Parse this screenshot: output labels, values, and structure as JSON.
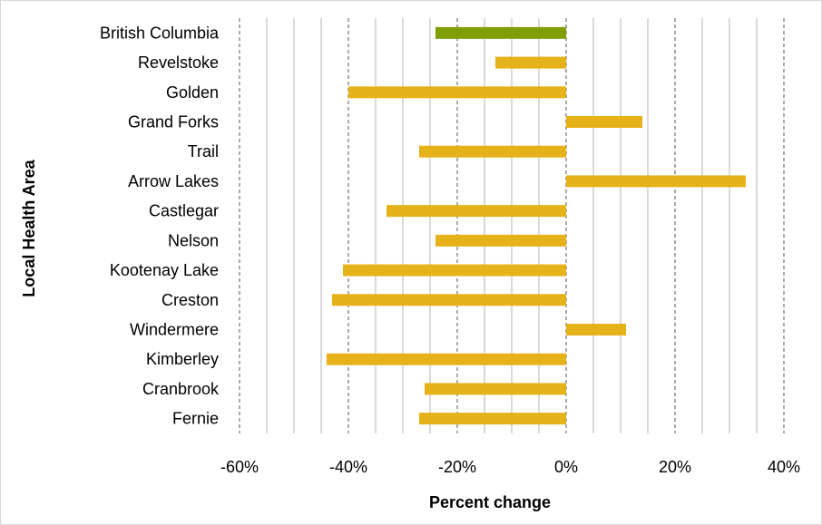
{
  "chart_data": {
    "type": "bar",
    "orientation": "horizontal",
    "categories": [
      "British Columbia",
      "Revelstoke",
      "Golden",
      "Grand Forks",
      "Trail",
      "Arrow Lakes",
      "Castlegar",
      "Nelson",
      "Kootenay Lake",
      "Creston",
      "Windermere",
      "Kimberley",
      "Cranbrook",
      "Fernie"
    ],
    "values": [
      -0.24,
      -0.13,
      -0.4,
      0.14,
      -0.27,
      0.33,
      -0.33,
      -0.24,
      -0.41,
      -0.43,
      0.11,
      -0.44,
      -0.26,
      -0.27
    ],
    "bar_colors": [
      "#7f9f00",
      "#e6b219",
      "#e6b219",
      "#e6b219",
      "#e6b219",
      "#e6b219",
      "#e6b219",
      "#e6b219",
      "#e6b219",
      "#e6b219",
      "#e6b219",
      "#e6b219",
      "#e6b219",
      "#e6b219"
    ],
    "title": "",
    "xlabel": "Percent change",
    "ylabel": "Local Health Area",
    "xlim": [
      -0.6,
      0.4
    ],
    "xticks": [
      -0.6,
      -0.4,
      -0.2,
      0,
      0.2,
      0.4
    ],
    "xtick_labels": [
      "-60%",
      "-40%",
      "-20%",
      "0%",
      "20%",
      "40%"
    ],
    "grid": true,
    "legend": "none"
  }
}
